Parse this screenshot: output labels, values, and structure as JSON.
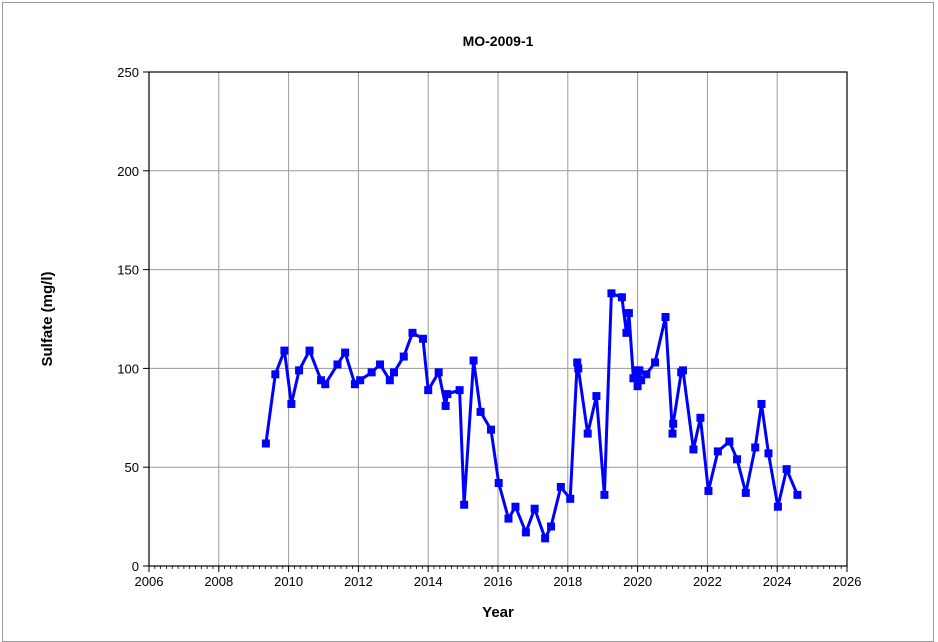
{
  "chart_data": {
    "type": "line",
    "title": "MO-2009-1",
    "xlabel": "Year",
    "ylabel": "Sulfate (mg/l)",
    "xlim": [
      2006,
      2026
    ],
    "ylim": [
      0,
      250
    ],
    "x_ticks": [
      "2006",
      "2008",
      "2010",
      "2012",
      "2014",
      "2016",
      "2018",
      "2020",
      "2022",
      "2024",
      "2026"
    ],
    "y_ticks": [
      "0",
      "50",
      "100",
      "150",
      "200",
      "250"
    ],
    "grid": true,
    "legend": "none",
    "series": [
      {
        "color": "#0000ff",
        "marker": "square",
        "x": [
          2009.35,
          2009.62,
          2009.88,
          2010.08,
          2010.3,
          2010.6,
          2010.93,
          2011.05,
          2011.4,
          2011.62,
          2011.9,
          2012.05,
          2012.38,
          2012.62,
          2012.9,
          2013.02,
          2013.3,
          2013.55,
          2013.85,
          2014.0,
          2014.3,
          2014.5,
          2014.55,
          2014.9,
          2015.03,
          2015.3,
          2015.5,
          2015.8,
          2016.02,
          2016.3,
          2016.5,
          2016.8,
          2017.05,
          2017.35,
          2017.52,
          2017.8,
          2018.07,
          2018.27,
          2018.3,
          2018.57,
          2018.82,
          2019.05,
          2019.25,
          2019.55,
          2019.68,
          2019.75,
          2019.88,
          2019.95,
          2020.0,
          2020.05,
          2020.1,
          2020.25,
          2020.5,
          2020.8,
          2021.0,
          2021.02,
          2021.25,
          2021.3,
          2021.6,
          2021.8,
          2022.03,
          2022.3,
          2022.63,
          2022.85,
          2023.1,
          2023.37,
          2023.55,
          2023.75,
          2024.02,
          2024.27,
          2024.58
        ],
        "y": [
          62,
          97,
          109,
          82,
          99,
          109,
          94,
          92,
          102,
          108,
          92,
          94,
          98,
          102,
          94,
          98,
          106,
          118,
          115,
          89,
          98,
          81,
          87,
          89,
          31,
          104,
          78,
          69,
          42,
          24,
          30,
          17,
          29,
          14,
          20,
          40,
          34,
          103,
          100,
          67,
          86,
          36,
          138,
          136,
          118,
          128,
          95,
          99,
          91,
          99,
          94,
          97,
          103,
          126,
          67,
          72,
          98,
          99,
          59,
          75,
          38,
          58,
          63,
          54,
          37,
          60,
          82,
          57,
          30,
          49,
          36
        ]
      }
    ]
  }
}
